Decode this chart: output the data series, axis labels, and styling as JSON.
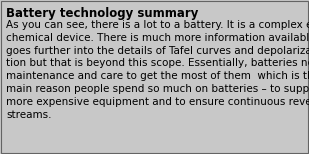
{
  "title": "Battery technology summary",
  "body_lines": [
    "As you can see, there is a lot to a battery. It is a complex electro-",
    "chemical device. There is much more information available that",
    "goes further into the details of Tafel curves and depolariza-",
    "tion but that is beyond this scope. Essentially, batteries need",
    "maintenance and care to get the most of them  which is the",
    "main reason people spend so much on batteries – to support far",
    "more expensive equipment and to ensure continuous revenue",
    "streams."
  ],
  "background_color": "#c8c8c8",
  "border_color": "#646464",
  "title_fontsize": 8.5,
  "body_fontsize": 7.5,
  "title_font_weight": "bold",
  "text_color": "#000000",
  "font_family": "DejaVu Sans"
}
